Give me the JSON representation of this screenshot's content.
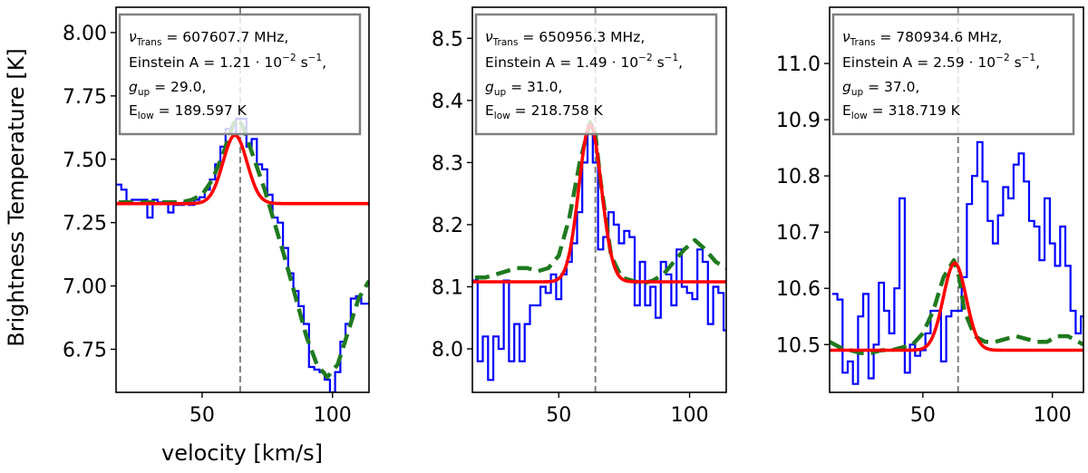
{
  "figure": {
    "ylabel": "Brightness Temperature [K]",
    "xlabel": "velocity [km/s]"
  },
  "chart_data": [
    {
      "type": "line",
      "xlabel": "velocity [km/s]",
      "ylabel": "Brightness Temperature [K]",
      "xlim": [
        17,
        114
      ],
      "ylim": [
        6.58,
        8.1
      ],
      "xticks": [
        50,
        100
      ],
      "yticks": [
        6.75,
        7.0,
        7.25,
        7.5,
        7.75,
        8.0
      ],
      "ytick_labels": [
        "6.75",
        "7.00",
        "7.25",
        "7.50",
        "7.75",
        "8.00"
      ],
      "vline_x": 64.6,
      "legend": {
        "nu_label": "νTrans = 607607.7 MHz,",
        "einstein_label": "Einstein A = 1.21 · 10−2 s−1,",
        "gup_label": "gup = 29.0,",
        "elow_label": "Elow = 189.597 K",
        "nu_value": "607607.7",
        "A_mantissa": "1.21",
        "gup": "29.0",
        "elow": "189.597"
      },
      "series": [
        {
          "name": "observed",
          "style": "step",
          "color": "#0000ff",
          "x": [
            18,
            20,
            22,
            24,
            26,
            28,
            30,
            32,
            34,
            36,
            38,
            40,
            42,
            44,
            46,
            48,
            50,
            52,
            54,
            56,
            58,
            60,
            62,
            64,
            66,
            68,
            70,
            72,
            74,
            76,
            78,
            80,
            82,
            84,
            86,
            88,
            90,
            92,
            94,
            96,
            98,
            100,
            102,
            104,
            106,
            108,
            110,
            112,
            114
          ],
          "y": [
            7.4,
            7.38,
            7.33,
            7.34,
            7.34,
            7.34,
            7.27,
            7.34,
            7.33,
            7.33,
            7.29,
            7.32,
            7.32,
            7.33,
            7.32,
            7.34,
            7.35,
            7.38,
            7.42,
            7.48,
            7.55,
            7.62,
            7.6,
            7.66,
            7.66,
            7.55,
            7.58,
            7.48,
            7.46,
            7.36,
            7.27,
            7.25,
            7.15,
            7.05,
            6.98,
            6.92,
            6.85,
            6.68,
            6.67,
            6.66,
            6.63,
            6.58,
            6.66,
            6.78,
            6.85,
            6.95,
            6.96,
            6.93,
            6.93
          ]
        },
        {
          "name": "model",
          "style": "dashed",
          "color": "#1f7a1f",
          "x": [
            18,
            22,
            26,
            30,
            34,
            38,
            42,
            46,
            50,
            54,
            58,
            62,
            64,
            66,
            70,
            74,
            78,
            82,
            86,
            90,
            94,
            98,
            102,
            106,
            110,
            114
          ],
          "y": [
            7.33,
            7.33,
            7.33,
            7.33,
            7.33,
            7.33,
            7.33,
            7.34,
            7.36,
            7.42,
            7.52,
            7.64,
            7.66,
            7.62,
            7.5,
            7.38,
            7.24,
            7.1,
            6.95,
            6.8,
            6.69,
            6.64,
            6.69,
            6.82,
            6.95,
            7.02
          ]
        },
        {
          "name": "gaussian fit",
          "style": "solid",
          "color": "#ff0000",
          "baseline": 7.325,
          "amplitude": 0.27,
          "center": 62.6,
          "sigma": 4.6,
          "x_range": [
            17,
            114
          ]
        }
      ]
    },
    {
      "type": "line",
      "xlabel": "",
      "ylabel": "",
      "xlim": [
        17,
        114
      ],
      "ylim": [
        7.93,
        8.55
      ],
      "xticks": [
        50,
        100
      ],
      "yticks": [
        8.0,
        8.1,
        8.2,
        8.3,
        8.4,
        8.5
      ],
      "ytick_labels": [
        "8.0",
        "8.1",
        "8.2",
        "8.3",
        "8.4",
        "8.5"
      ],
      "vline_x": 64.0,
      "legend": {
        "nu_label": "νTrans = 650956.3 MHz,",
        "einstein_label": "Einstein A = 1.49 · 10−2 s−1,",
        "gup_label": "gup = 31.0,",
        "elow_label": "Elow = 218.758 K",
        "nu_value": "650956.3",
        "A_mantissa": "1.49",
        "gup": "31.0",
        "elow": "218.758"
      },
      "series": [
        {
          "name": "observed",
          "style": "step",
          "color": "#0000ff",
          "x": [
            18,
            20,
            22,
            24,
            26,
            28,
            30,
            32,
            34,
            36,
            38,
            40,
            42,
            44,
            46,
            48,
            50,
            52,
            54,
            56,
            58,
            60,
            62,
            64,
            66,
            68,
            70,
            72,
            74,
            76,
            78,
            80,
            82,
            84,
            86,
            88,
            90,
            92,
            94,
            96,
            98,
            100,
            102,
            104,
            106,
            108,
            110,
            112,
            114
          ],
          "y": [
            8.11,
            7.98,
            8.02,
            7.95,
            8.02,
            8.0,
            8.11,
            7.98,
            8.04,
            7.98,
            8.04,
            8.07,
            8.07,
            8.1,
            8.09,
            8.12,
            8.08,
            8.12,
            8.14,
            8.17,
            8.22,
            8.3,
            8.36,
            8.3,
            8.16,
            8.18,
            8.22,
            8.2,
            8.17,
            8.19,
            8.18,
            8.07,
            8.14,
            8.07,
            8.1,
            8.05,
            8.14,
            8.12,
            8.07,
            8.16,
            8.1,
            8.09,
            8.08,
            8.16,
            8.14,
            8.04,
            8.1,
            8.09,
            8.03
          ]
        },
        {
          "name": "model",
          "style": "dashed",
          "color": "#1f7a1f",
          "x": [
            18,
            22,
            26,
            30,
            34,
            38,
            42,
            46,
            50,
            54,
            58,
            62,
            64,
            66,
            70,
            74,
            78,
            82,
            86,
            90,
            94,
            98,
            102,
            106,
            110,
            114
          ],
          "y": [
            8.115,
            8.115,
            8.12,
            8.125,
            8.13,
            8.13,
            8.125,
            8.13,
            8.15,
            8.21,
            8.3,
            8.365,
            8.345,
            8.27,
            8.15,
            8.115,
            8.11,
            8.105,
            8.11,
            8.12,
            8.14,
            8.16,
            8.175,
            8.16,
            8.14,
            8.13
          ]
        },
        {
          "name": "gaussian fit",
          "style": "solid",
          "color": "#ff0000",
          "baseline": 8.108,
          "amplitude": 0.252,
          "center": 62.0,
          "sigma": 4.3,
          "x_range": [
            17,
            114
          ]
        }
      ]
    },
    {
      "type": "line",
      "xlabel": "",
      "ylabel": "",
      "xlim": [
        14,
        112
      ],
      "ylim": [
        10.415,
        11.1
      ],
      "xticks": [
        50,
        100
      ],
      "yticks": [
        10.5,
        10.6,
        10.7,
        10.8,
        10.9,
        11.0
      ],
      "ytick_labels": [
        "10.5",
        "10.6",
        "10.7",
        "10.8",
        "10.9",
        "11.0"
      ],
      "vline_x": 63.6,
      "legend": {
        "nu_label": "νTrans = 780934.6 MHz,",
        "einstein_label": "Einstein A = 2.59 · 10−2 s−1,",
        "gup_label": "gup = 37.0,",
        "elow_label": "Elow = 318.719 K",
        "nu_value": "780934.6",
        "A_mantissa": "2.59",
        "gup": "37.0",
        "elow": "318.719"
      },
      "series": [
        {
          "name": "observed",
          "style": "step",
          "color": "#0000ff",
          "x": [
            16,
            18,
            20,
            22,
            24,
            26,
            28,
            30,
            32,
            34,
            36,
            38,
            40,
            42,
            44,
            46,
            48,
            50,
            52,
            54,
            56,
            58,
            60,
            62,
            64,
            66,
            68,
            70,
            72,
            74,
            76,
            78,
            80,
            82,
            84,
            86,
            88,
            90,
            92,
            94,
            96,
            98,
            100,
            102,
            104,
            106,
            108,
            110,
            112
          ],
          "y": [
            10.59,
            10.58,
            10.45,
            10.47,
            10.43,
            10.55,
            10.59,
            10.44,
            10.5,
            10.61,
            10.56,
            10.52,
            10.6,
            10.76,
            10.45,
            10.5,
            10.48,
            10.49,
            10.52,
            10.56,
            10.56,
            10.47,
            10.55,
            10.56,
            10.56,
            10.62,
            10.75,
            10.8,
            10.86,
            10.79,
            10.72,
            10.68,
            10.73,
            10.78,
            10.76,
            10.82,
            10.84,
            10.79,
            10.72,
            10.71,
            10.65,
            10.76,
            10.68,
            10.64,
            10.71,
            10.64,
            10.56,
            10.52,
            10.55
          ]
        },
        {
          "name": "model",
          "style": "dashed",
          "color": "#1f7a1f",
          "x": [
            14,
            18,
            22,
            26,
            30,
            34,
            38,
            42,
            46,
            50,
            54,
            58,
            62,
            64,
            66,
            70,
            74,
            78,
            82,
            86,
            90,
            94,
            98,
            102,
            106,
            110,
            112
          ],
          "y": [
            10.505,
            10.495,
            10.49,
            10.485,
            10.485,
            10.49,
            10.49,
            10.495,
            10.5,
            10.52,
            10.56,
            10.62,
            10.65,
            10.62,
            10.56,
            10.515,
            10.505,
            10.505,
            10.51,
            10.515,
            10.51,
            10.505,
            10.505,
            10.515,
            10.515,
            10.505,
            10.5
          ]
        },
        {
          "name": "gaussian fit",
          "style": "solid",
          "color": "#ff0000",
          "baseline": 10.49,
          "amplitude": 0.155,
          "center": 62.3,
          "sigma": 4.4,
          "x_range": [
            14,
            112
          ]
        }
      ]
    }
  ]
}
